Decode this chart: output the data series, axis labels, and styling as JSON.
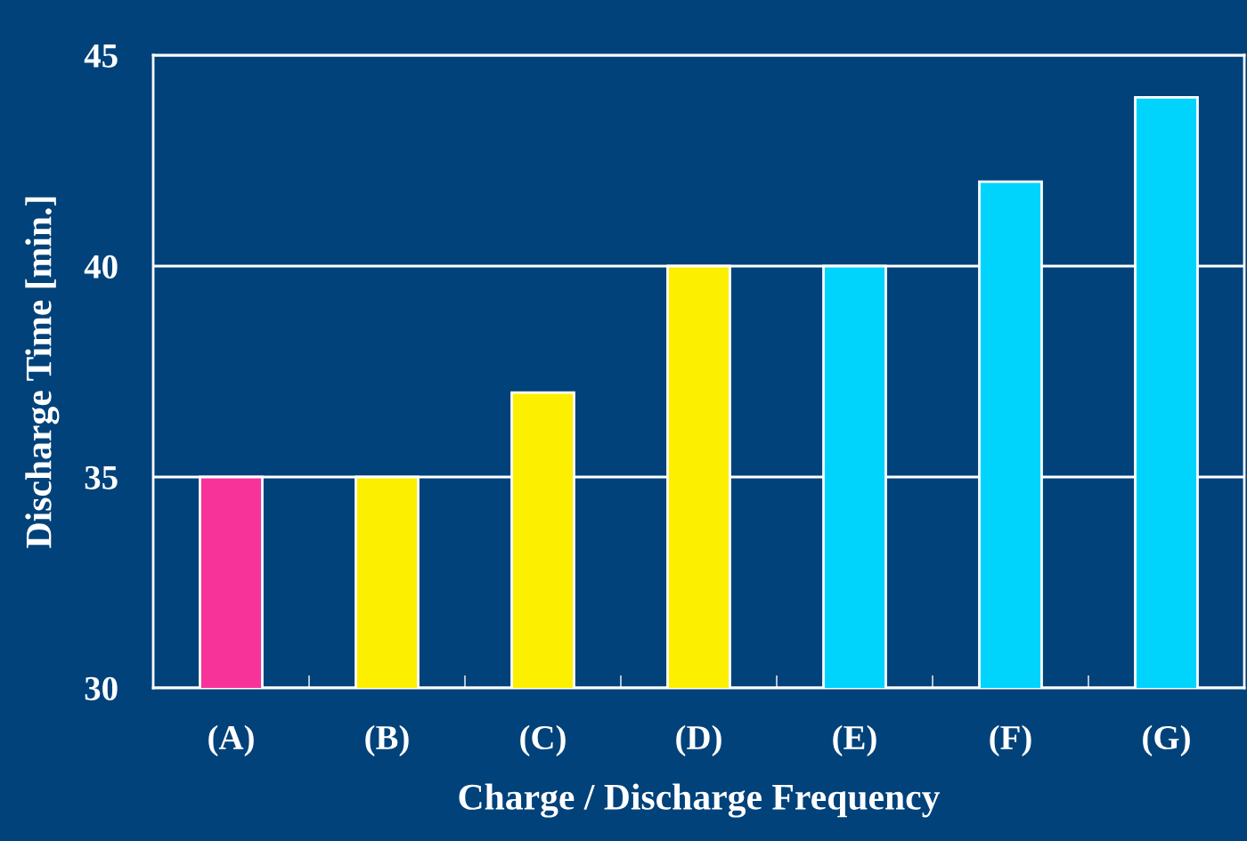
{
  "chart_data": {
    "type": "bar",
    "xlabel": "Charge / Discharge Frequency",
    "ylabel": "Discharge Time [min.]",
    "categories": [
      "(A)",
      "(B)",
      "(C)",
      "(D)",
      "(E)",
      "(F)",
      "(G)"
    ],
    "values": [
      35,
      35,
      37,
      40,
      40,
      42,
      44
    ],
    "colors": [
      "#f7339a",
      "#fcf000",
      "#fcf000",
      "#fcf000",
      "#00d4fc",
      "#00d4fc",
      "#00d4fc"
    ],
    "ylim": [
      30,
      45
    ],
    "yticks": [
      30,
      35,
      40,
      45
    ],
    "grid": "y"
  }
}
